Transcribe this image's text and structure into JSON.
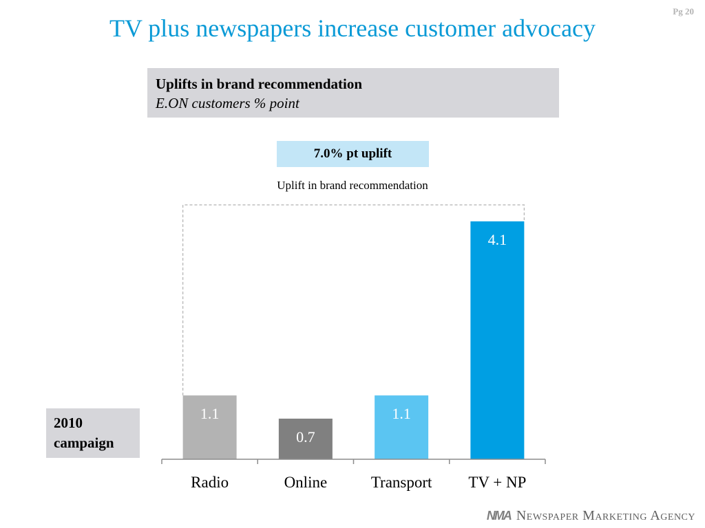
{
  "page": {
    "number_label": "Pg 20"
  },
  "slide": {
    "title": "TV plus newspapers increase customer advocacy"
  },
  "info_box": {
    "title": "Uplifts in brand recommendation",
    "subtitle": "E.ON customers % point"
  },
  "uplift_box": {
    "label": "7.0% pt uplift"
  },
  "campaign_box": {
    "line1": "2010",
    "line2": "campaign"
  },
  "logo": {
    "mark": "NMA",
    "name": "Newspaper Marketing Agency"
  },
  "chart_data": {
    "type": "bar",
    "title": "Uplift in brand recommendation",
    "categories": [
      "Radio",
      "Online",
      "Transport",
      "TV + NP"
    ],
    "values": [
      1.1,
      0.7,
      1.1,
      4.1
    ],
    "data_labels": [
      "1.1",
      "0.7",
      "1.1",
      "4.1"
    ],
    "colors": [
      "#b3b3b3",
      "#808080",
      "#5bc5f2",
      "#009fe3"
    ],
    "ylim": [
      0,
      4.1
    ],
    "grid": false,
    "bracket_total": "7.0"
  }
}
